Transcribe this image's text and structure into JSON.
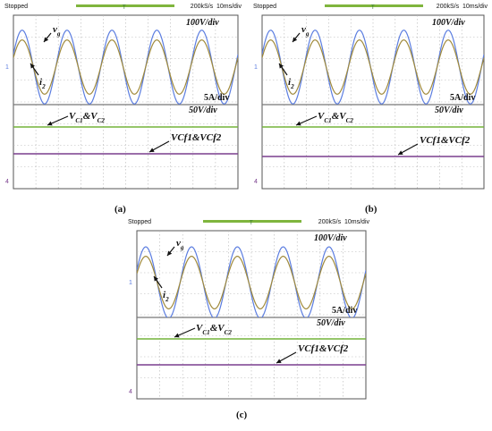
{
  "scopes": [
    {
      "id": "a",
      "status": "Stopped",
      "rate": "200kS/s",
      "timebase": "10ms/div",
      "scale_voltage": "100V/div",
      "scale_current": "5A/div",
      "scale_cap": "50V/div",
      "label_vg": "v",
      "label_vg_sub": "g",
      "label_i2": "i",
      "label_i2_sub": "2",
      "label_vc": "V",
      "label_vc_sub1": "C1",
      "label_vc_mid": "&V",
      "label_vc_sub2": "C2",
      "label_vcf": "VCf1&VCf2",
      "caption": "(a)"
    },
    {
      "id": "b",
      "status": "Stopped",
      "rate": "200kS/s",
      "timebase": "10ms/div",
      "scale_voltage": "100V/div",
      "scale_current": "5A/div",
      "scale_cap": "50V/div",
      "label_vg": "v",
      "label_vg_sub": "g",
      "label_i2": "i",
      "label_i2_sub": "2",
      "label_vc": "V",
      "label_vc_sub1": "C1",
      "label_vc_mid": "&V",
      "label_vc_sub2": "C2",
      "label_vcf": "VCf1&VCf2",
      "caption": "(b)"
    },
    {
      "id": "c",
      "status": "Stopped",
      "rate": "200kS/s",
      "timebase": "10ms/div",
      "scale_voltage": "100V/div",
      "scale_current": "5A/div",
      "scale_cap": "50V/div",
      "label_vg": "v",
      "label_vg_sub": "g",
      "label_i2": "i",
      "label_i2_sub": "2",
      "label_vc": "V",
      "label_vc_sub1": "C1",
      "label_vc_mid": "&V",
      "label_vc_sub2": "C2",
      "label_vcf": "VCf1&VCf2",
      "caption": "(c)"
    }
  ],
  "colors": {
    "vg": "#5b7de0",
    "i2": "#a08a3c",
    "vc": "#74b43a",
    "vcf": "#7a3e8e",
    "grid": "#b5b5b5",
    "divider": "#777777"
  },
  "chart_data": [
    {
      "type": "line",
      "panel": "a",
      "time_per_div": "10ms",
      "divisions_x": 10,
      "series": [
        {
          "name": "v_g",
          "shape": "sinusoid",
          "cycles": 5,
          "amplitude_div": 1.7
        },
        {
          "name": "i_2",
          "shape": "sinusoid",
          "cycles": 5,
          "amplitude_div": 1.25
        },
        {
          "name": "V_C1&V_C2",
          "shape": "dc"
        },
        {
          "name": "VCf1&VCf2",
          "shape": "dc"
        }
      ]
    },
    {
      "type": "line",
      "panel": "b",
      "time_per_div": "10ms",
      "divisions_x": 10,
      "series": [
        {
          "name": "v_g",
          "shape": "sinusoid",
          "cycles": 5,
          "amplitude_div": 1.7
        },
        {
          "name": "i_2",
          "shape": "sinusoid",
          "cycles": 5,
          "amplitude_div": 1.25
        },
        {
          "name": "V_C1&V_C2",
          "shape": "dc"
        },
        {
          "name": "VCf1&VCf2",
          "shape": "dc"
        }
      ]
    },
    {
      "type": "line",
      "panel": "c",
      "time_per_div": "10ms",
      "divisions_x": 10,
      "series": [
        {
          "name": "v_g",
          "shape": "sinusoid",
          "cycles": 5,
          "amplitude_div": 1.7
        },
        {
          "name": "i_2",
          "shape": "sinusoid",
          "cycles": 5,
          "amplitude_div": 1.25
        },
        {
          "name": "V_C1&V_C2",
          "shape": "dc"
        },
        {
          "name": "VCf1&VCf2",
          "shape": "dc"
        }
      ]
    }
  ]
}
